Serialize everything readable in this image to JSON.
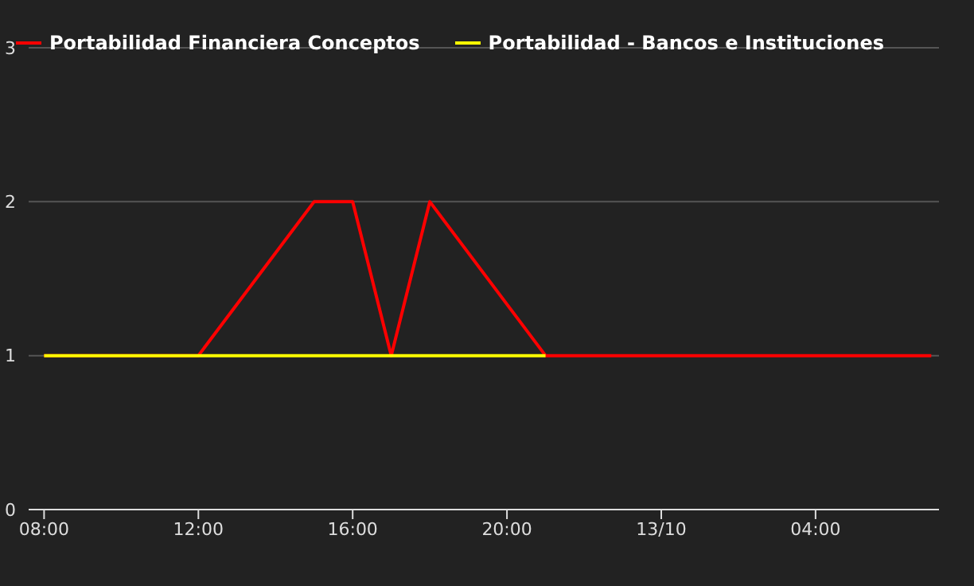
{
  "chart_data": {
    "type": "line",
    "xlim": [
      "--10-12T07:36",
      "--10-13T07:12"
    ],
    "xticks": [
      {
        "value": "--10-12T08:00",
        "label": "08:00"
      },
      {
        "value": "--10-12T12:00",
        "label": "12:00"
      },
      {
        "value": "--10-12T16:00",
        "label": "16:00"
      },
      {
        "value": "--10-12T20:00",
        "label": "20:00"
      },
      {
        "value": "--10-13T00:00",
        "label": "13/10"
      },
      {
        "value": "--10-13T04:00",
        "label": "04:00"
      }
    ],
    "ylim": [
      0,
      3
    ],
    "yticks": [
      0,
      1,
      2,
      3
    ],
    "grid": "y",
    "legend": "top left",
    "marker": "none",
    "line_style": "solid",
    "series": [
      {
        "name": "Portabilidad Financiera Conceptos",
        "color": "#ff0000",
        "x": [
          "--10-12T08:00",
          "--10-12T12:00",
          "--10-12T15:00",
          "--10-12T16:00",
          "--10-12T17:00",
          "--10-12T18:00",
          "--10-12T21:00",
          "--10-13T07:00"
        ],
        "values": [
          1,
          1,
          2,
          2,
          1,
          2,
          1,
          1
        ]
      },
      {
        "name": "Portabilidad - Bancos e Instituciones",
        "color": "#ffff00",
        "x": [
          "--10-12T08:00",
          "--10-12T21:00"
        ],
        "values": [
          1,
          1
        ]
      }
    ]
  }
}
